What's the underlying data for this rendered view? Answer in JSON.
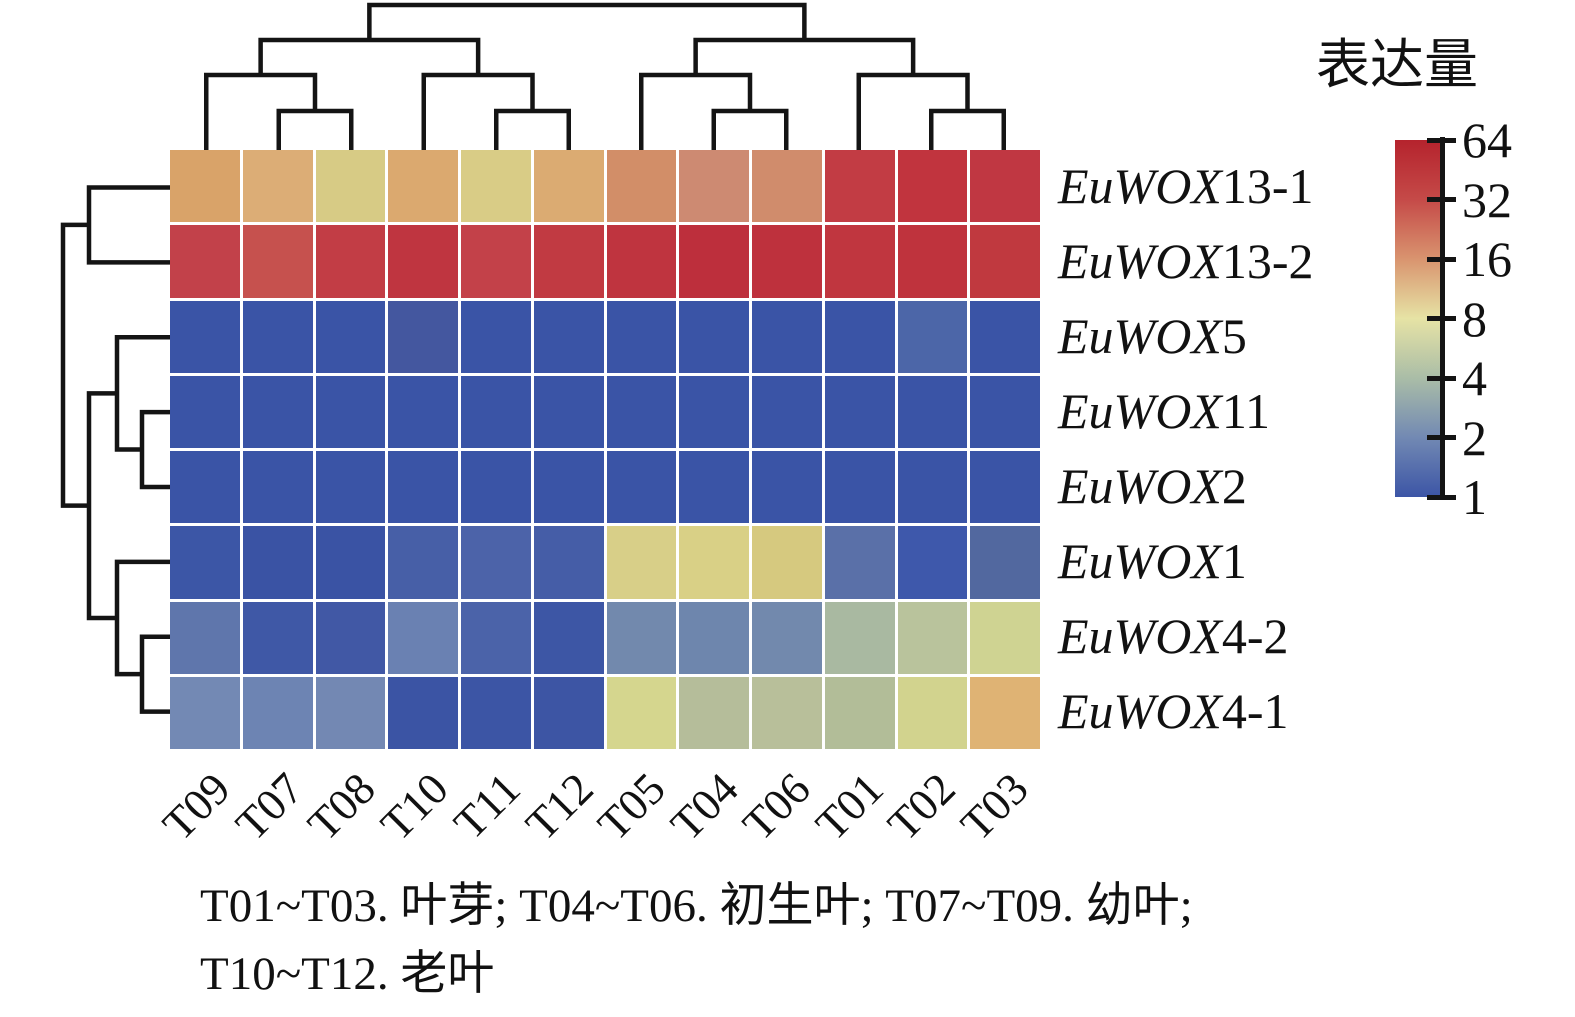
{
  "legend": {
    "title": "表达量",
    "ticks": [
      "64",
      "32",
      "16",
      "8",
      "4",
      "2",
      "1"
    ]
  },
  "caption": {
    "line1": "T01~T03. 叶芽; T04~T06. 初生叶; T07~T09. 幼叶;",
    "line2": "T10~T12. 老叶"
  },
  "chart_data": {
    "type": "heatmap",
    "title": "表达量",
    "scale": "log2",
    "value_range": [
      1,
      64
    ],
    "legend_position": "right",
    "columns": [
      "T09",
      "T07",
      "T08",
      "T10",
      "T11",
      "T12",
      "T05",
      "T04",
      "T06",
      "T01",
      "T02",
      "T03"
    ],
    "rows": [
      {
        "prefix": "EuWOX",
        "suffix": "13-1",
        "full": "EuWOX13-1"
      },
      {
        "prefix": "EuWOX",
        "suffix": "13-2",
        "full": "EuWOX13-2"
      },
      {
        "prefix": "EuWOX",
        "suffix": "5",
        "full": "EuWOX5"
      },
      {
        "prefix": "EuWOX",
        "suffix": "11",
        "full": "EuWOX11"
      },
      {
        "prefix": "EuWOX",
        "suffix": "2",
        "full": "EuWOX2"
      },
      {
        "prefix": "EuWOX",
        "suffix": "1",
        "full": "EuWOX1"
      },
      {
        "prefix": "EuWOX",
        "suffix": "4-2",
        "full": "EuWOX4-2"
      },
      {
        "prefix": "EuWOX",
        "suffix": "4-1",
        "full": "EuWOX4-1"
      }
    ],
    "cell_colors": [
      [
        "#d9a369",
        "#dcad76",
        "#d7cb85",
        "#dba96f",
        "#d9cc86",
        "#dbab72",
        "#d28e68",
        "#cd8a72",
        "#d08c6c",
        "#c23c44",
        "#c1343e",
        "#c03742"
      ],
      [
        "#c2414a",
        "#c6514e",
        "#c23d45",
        "#bf3540",
        "#c34149",
        "#c13a42",
        "#bf343f",
        "#bd2f3c",
        "#be313d",
        "#c0363f",
        "#bf333d",
        "#c0393f"
      ],
      [
        "#3a54a6",
        "#3a54a6",
        "#3a54a6",
        "#44579f",
        "#3a54a6",
        "#3a54a6",
        "#3a54a6",
        "#3a54a6",
        "#3a54a6",
        "#3a54a6",
        "#4c66a8",
        "#3a54a6"
      ],
      [
        "#3a54a6",
        "#3a54a6",
        "#3a54a6",
        "#3a54a6",
        "#3a54a6",
        "#3a54a6",
        "#3a54a6",
        "#3a54a6",
        "#3a54a6",
        "#3a54a6",
        "#3a54a6",
        "#3a54a6"
      ],
      [
        "#3a54a6",
        "#3a54a6",
        "#3a54a6",
        "#3a54a6",
        "#3a54a6",
        "#3a54a6",
        "#3a54a6",
        "#3a54a6",
        "#3a54a6",
        "#3a54a6",
        "#3a54a6",
        "#3a54a6"
      ],
      [
        "#3c56a6",
        "#3a53a4",
        "#3a53a4",
        "#475fa7",
        "#4c63a9",
        "#455da7",
        "#d8cf88",
        "#d9d086",
        "#d6c97f",
        "#5a70a8",
        "#3e58ab",
        "#52689f"
      ],
      [
        "#5f76ac",
        "#3f58a6",
        "#4158a5",
        "#6a81b2",
        "#4b63a9",
        "#3d56a5",
        "#7289ad",
        "#6e86ad",
        "#7289ad",
        "#a9b9a1",
        "#b9c39c",
        "#cfd392"
      ],
      [
        "#7389b4",
        "#6d84b3",
        "#7388b3",
        "#3b54a4",
        "#3c55a5",
        "#3d55a4",
        "#d5d68e",
        "#b5bd9a",
        "#b8bf9a",
        "#b2bd98",
        "#d2d38e",
        "#dfb374"
      ]
    ],
    "values_estimated": [
      [
        12,
        11,
        8,
        12,
        8,
        11,
        15,
        16,
        16,
        38,
        44,
        42
      ],
      [
        33,
        28,
        36,
        42,
        34,
        38,
        42,
        47,
        46,
        41,
        44,
        41
      ],
      [
        1,
        1,
        1,
        1.1,
        1,
        1,
        1,
        1,
        1,
        1,
        1.4,
        1
      ],
      [
        1,
        1,
        1,
        1,
        1,
        1,
        1,
        1,
        1,
        1,
        1,
        1
      ],
      [
        1,
        1,
        1,
        1,
        1,
        1,
        1,
        1,
        1,
        1,
        1,
        1
      ],
      [
        1,
        1,
        1,
        1.2,
        1.3,
        1.1,
        7.5,
        7.6,
        7,
        1.8,
        1.1,
        1.5
      ],
      [
        1.7,
        1.1,
        1.1,
        2,
        1.3,
        1,
        2.3,
        2.2,
        2.3,
        3.8,
        4.4,
        6
      ],
      [
        2.4,
        2.2,
        2.4,
        1,
        1,
        1,
        6.6,
        4.3,
        4.5,
        4.2,
        6.4,
        11
      ]
    ],
    "column_dendrogram": [
      [
        [
          0,
          [
            1,
            2
          ]
        ],
        [
          3,
          [
            4,
            5
          ]
        ]
      ],
      [
        [
          6,
          [
            7,
            8
          ]
        ],
        [
          9,
          [
            10,
            11
          ]
        ]
      ]
    ],
    "row_dendrogram": [
      [
        0,
        1
      ],
      [
        [
          2,
          [
            3,
            4
          ]
        ],
        [
          5,
          [
            6,
            7
          ]
        ]
      ]
    ],
    "legend_gradient": [
      "#b5232d",
      "#c54a48",
      "#d9946f",
      "#e6e3a5",
      "#aabda7",
      "#7289b3",
      "#3c55a6"
    ]
  }
}
